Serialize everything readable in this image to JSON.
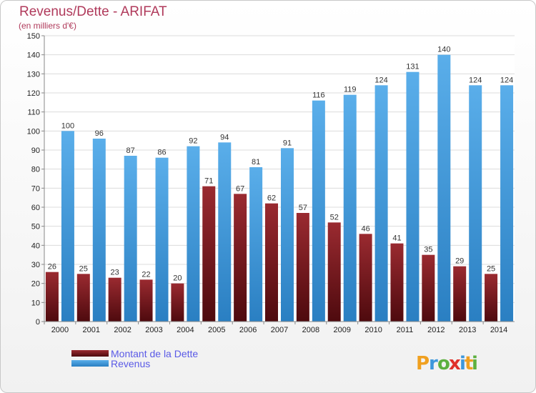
{
  "chart_data": {
    "type": "bar",
    "title": "Revenus/Dette - ARIFAT",
    "subtitle": "(en milliers d'€)",
    "categories": [
      "2000",
      "2001",
      "2002",
      "2003",
      "2004",
      "2005",
      "2006",
      "2007",
      "2008",
      "2009",
      "2010",
      "2011",
      "2012",
      "2013",
      "2014"
    ],
    "series": [
      {
        "name": "Montant de la Dette",
        "color": "#7a1e24",
        "values": [
          26,
          25,
          23,
          22,
          20,
          71,
          67,
          62,
          57,
          52,
          46,
          41,
          35,
          29,
          25
        ]
      },
      {
        "name": "Revenus",
        "color": "#3c97dc",
        "values": [
          100,
          96,
          87,
          86,
          92,
          94,
          81,
          91,
          116,
          119,
          124,
          131,
          140,
          124,
          124
        ]
      }
    ],
    "ylim": [
      0,
      150
    ],
    "yticks": [
      0,
      10,
      20,
      30,
      40,
      50,
      60,
      70,
      80,
      90,
      100,
      110,
      120,
      130,
      140,
      150
    ],
    "grid": true,
    "legend_position": "bottom-left",
    "data_labels": true
  },
  "branding": {
    "logo_text": "Proxiti",
    "letters": [
      {
        "ch": "P",
        "color": "#f0a020"
      },
      {
        "ch": "r",
        "color": "#3c97dc"
      },
      {
        "ch": "o",
        "color": "#5db040"
      },
      {
        "ch": "x",
        "color": "#e0302a"
      },
      {
        "ch": "i",
        "color": "#3c97dc"
      },
      {
        "ch": "t",
        "color": "#f0a020"
      },
      {
        "ch": "i",
        "color": "#5db040"
      }
    ]
  }
}
